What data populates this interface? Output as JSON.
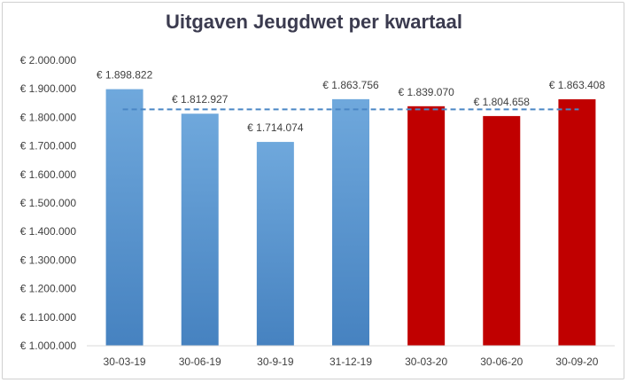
{
  "chart_data": {
    "type": "bar",
    "title": "Uitgaven Jeugdwet per kwartaal",
    "xlabel": "",
    "ylabel": "",
    "categories": [
      "30-03-19",
      "30-06-19",
      "30-9-19",
      "31-12-19",
      "30-03-20",
      "30-06-20",
      "30-09-20"
    ],
    "values": [
      1898822,
      1812927,
      1714074,
      1863756,
      1839070,
      1804658,
      1863408
    ],
    "value_labels": [
      "€ 1.898.822",
      "€ 1.812.927",
      "€ 1.714.074",
      "€ 1.863.756",
      "€ 1.839.070",
      "€ 1.804.658",
      "€ 1.863.408"
    ],
    "ylim": [
      1000000,
      2000000
    ],
    "ytick_values": [
      1000000,
      1100000,
      1200000,
      1300000,
      1400000,
      1500000,
      1600000,
      1700000,
      1800000,
      1900000,
      2000000
    ],
    "ytick_labels": [
      "€ 1.000.000",
      "€ 1.100.000",
      "€ 1.200.000",
      "€ 1.300.000",
      "€ 1.400.000",
      "€ 1.500.000",
      "€ 1.600.000",
      "€ 1.700.000",
      "€ 1.800.000",
      "€ 1.900.000",
      "€ 2.000.000"
    ],
    "bar_colors": [
      "#5b9bd5",
      "#5b9bd5",
      "#5b9bd5",
      "#5b9bd5",
      "#c00000",
      "#c00000",
      "#c00000"
    ],
    "average_line": {
      "value": 1828000,
      "color": "#4a86c5",
      "style": "dashed"
    },
    "grid": false
  }
}
